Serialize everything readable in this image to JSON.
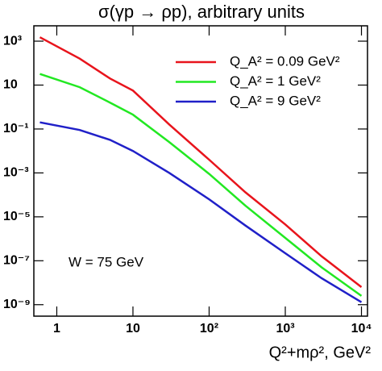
{
  "chart_data": {
    "type": "line",
    "title": "σ(γp → ρp), arbitrary units",
    "x_label": "Q²+mρ², GeV²",
    "annotation": "W = 75 GeV",
    "x_log": true,
    "y_log": true,
    "legend": "upper right",
    "x": [
      0.6,
      2,
      5,
      10,
      30,
      100,
      300,
      1000,
      3000,
      10000
    ],
    "series": [
      {
        "name": "Q_A² = 0.09 GeV²",
        "color": "#e8141c",
        "values": [
          1500,
          160,
          20,
          5.6,
          0.16,
          0.004,
          0.00013,
          4.5e-06,
          1.6e-07,
          6.3e-09
        ]
      },
      {
        "name": "Q_A² = 1 GeV²",
        "color": "#22e822",
        "values": [
          32,
          8,
          1.6,
          0.45,
          0.025,
          0.0009,
          3.2e-05,
          1.1e-06,
          5e-08,
          2.5e-09
        ]
      },
      {
        "name": "Q_A² = 9 GeV²",
        "color": "#2020c8",
        "values": [
          0.2,
          0.09,
          0.032,
          0.01,
          0.001,
          6.3e-05,
          4e-06,
          2.2e-07,
          1.6e-08,
          1.3e-09
        ]
      }
    ],
    "xlim": [
      0.5,
      12000
    ],
    "ylim": [
      3e-10,
      5000
    ],
    "xticks": [
      1,
      10,
      {
        "value": 100,
        "label": "10²"
      },
      {
        "value": 1000,
        "label": "10³"
      },
      {
        "value": 10000,
        "label": "10⁴"
      }
    ],
    "yticks": [
      {
        "value": 1000,
        "label": "10³"
      },
      10,
      {
        "value": 0.1,
        "label": "10⁻¹"
      },
      {
        "value": 0.001,
        "label": "10⁻³"
      },
      {
        "value": 1e-05,
        "label": "10⁻⁵"
      },
      {
        "value": 1e-07,
        "label": "10⁻⁷"
      },
      {
        "value": 1e-09,
        "label": "10⁻⁹"
      }
    ]
  }
}
